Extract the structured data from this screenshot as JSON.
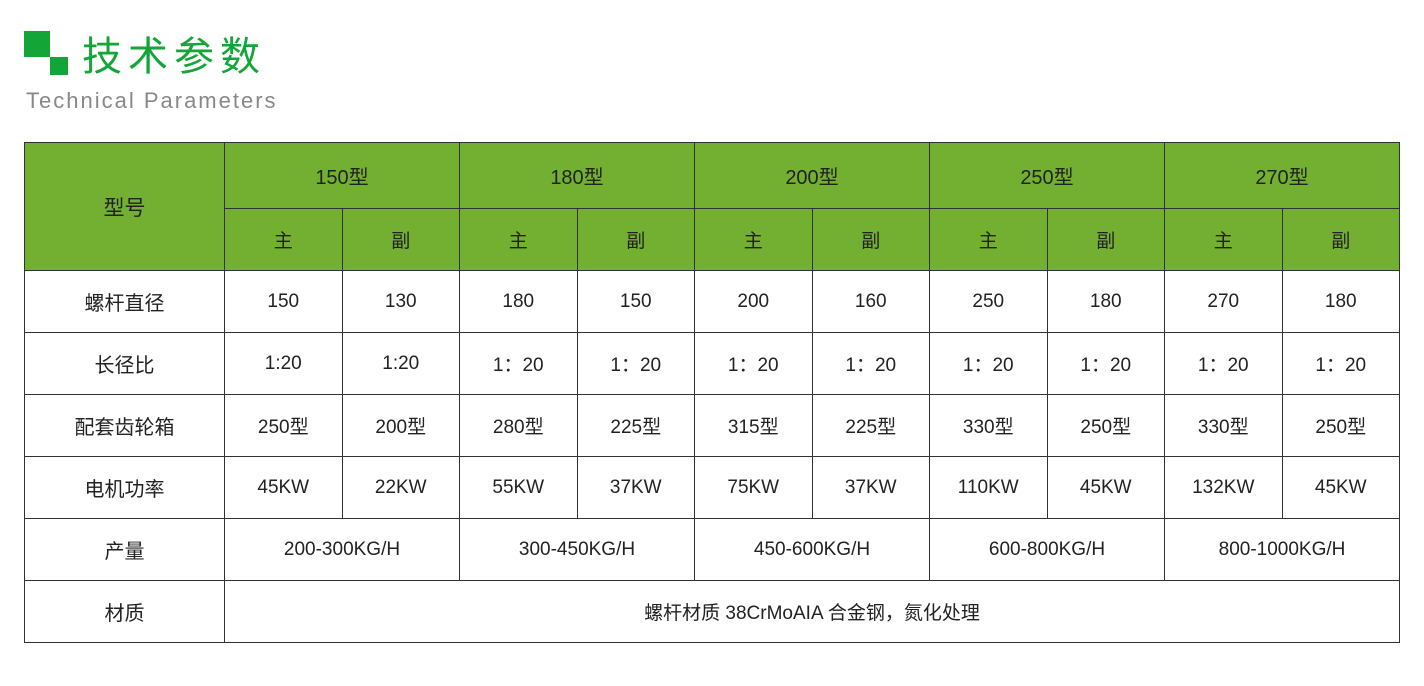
{
  "title_cn": "技术参数",
  "title_en": "Technical Parameters",
  "colors": {
    "brand_green": "#13a538",
    "header_bg": "#73b031",
    "subtitle_gray": "#888888",
    "border": "#333333",
    "text": "#222222"
  },
  "table": {
    "row_header_label": "型号",
    "model_columns": [
      "150型",
      "180型",
      "200型",
      "250型",
      "270型"
    ],
    "sub_columns": [
      "主",
      "副"
    ],
    "rows": [
      {
        "label": "螺杆直径",
        "values": [
          "150",
          "130",
          "180",
          "150",
          "200",
          "160",
          "250",
          "180",
          "270",
          "180"
        ]
      },
      {
        "label": "长径比",
        "values": [
          "1:20",
          "1:20",
          "1：20",
          "1：20",
          "1：20",
          "1：20",
          "1：20",
          "1：20",
          "1：20",
          "1：20"
        ]
      },
      {
        "label": "配套齿轮箱",
        "values": [
          "250型",
          "200型",
          "280型",
          "225型",
          "315型",
          "225型",
          "330型",
          "250型",
          "330型",
          "250型"
        ]
      },
      {
        "label": "电机功率",
        "values": [
          "45KW",
          "22KW",
          "55KW",
          "37KW",
          "75KW",
          "37KW",
          "110KW",
          "45KW",
          "132KW",
          "45KW"
        ]
      }
    ],
    "output_row": {
      "label": "产量",
      "values": [
        "200-300KG/H",
        "300-450KG/H",
        "450-600KG/H",
        "600-800KG/H",
        "800-1000KG/H"
      ]
    },
    "material_row": {
      "label": "材质",
      "value": "螺杆材质  38CrMoAIA 合金钢，氮化处理"
    }
  }
}
